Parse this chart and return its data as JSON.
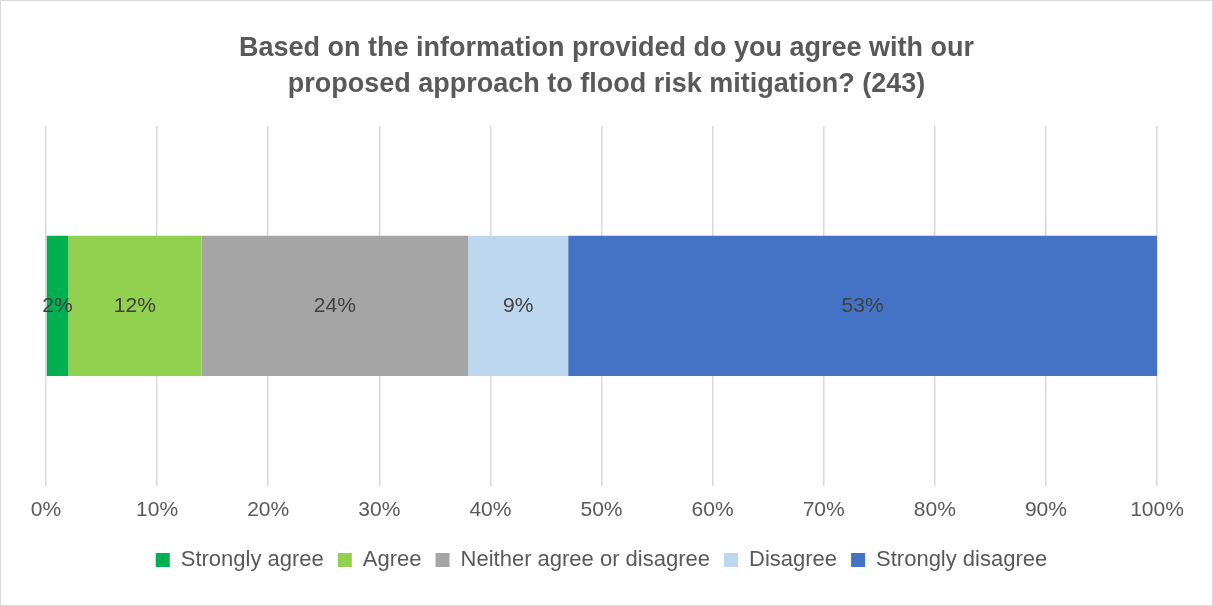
{
  "chart_data": {
    "type": "bar",
    "orientation": "horizontal",
    "stacked": true,
    "title": "Based on the information provided do you agree with our proposed approach to flood risk mitigation? (243)",
    "categories": [
      null
    ],
    "series": [
      {
        "name": "Strongly agree",
        "color": "#00b050",
        "values": [
          2
        ],
        "value_labels": [
          "2%"
        ]
      },
      {
        "name": "Agree",
        "color": "#92d050",
        "values": [
          12
        ],
        "value_labels": [
          "12%"
        ]
      },
      {
        "name": "Neither agree or disagree",
        "color": "#a5a5a5",
        "values": [
          24
        ],
        "value_labels": [
          "24%"
        ]
      },
      {
        "name": "Disagree",
        "color": "#bdd7ee",
        "values": [
          9
        ],
        "value_labels": [
          "9%"
        ]
      },
      {
        "name": "Strongly disagree",
        "color": "#4472c4",
        "values": [
          53
        ],
        "value_labels": [
          "53%"
        ]
      }
    ],
    "xlim": [
      0,
      100
    ],
    "xticks": [
      {
        "value": 0,
        "label": "0%"
      },
      {
        "value": 10,
        "label": "10%"
      },
      {
        "value": 20,
        "label": "20%"
      },
      {
        "value": 30,
        "label": "30%"
      },
      {
        "value": 40,
        "label": "40%"
      },
      {
        "value": 50,
        "label": "50%"
      },
      {
        "value": 60,
        "label": "60%"
      },
      {
        "value": 70,
        "label": "70%"
      },
      {
        "value": 80,
        "label": "80%"
      },
      {
        "value": 90,
        "label": "90%"
      },
      {
        "value": 100,
        "label": "100%"
      }
    ],
    "grid": "x",
    "legend": "bottom"
  }
}
